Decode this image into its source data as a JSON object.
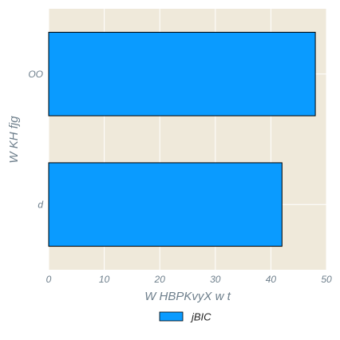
{
  "chart_data": {
    "type": "bar",
    "orientation": "horizontal",
    "categories": [
      "OO",
      "d"
    ],
    "series": [
      {
        "name": "jBIC",
        "values": [
          48,
          42
        ],
        "color": "#0a9bff"
      }
    ],
    "xlabel": "W HBPKvyX w t",
    "ylabel": "W KH fjg",
    "xlim": [
      0,
      50
    ],
    "xticks": [
      0,
      10,
      20,
      30,
      40,
      50
    ],
    "grid": true,
    "legend_position": "bottom-center",
    "background_color": "#efe9da",
    "grid_color": "#ffffff",
    "bar_edge_color": "#000000"
  }
}
